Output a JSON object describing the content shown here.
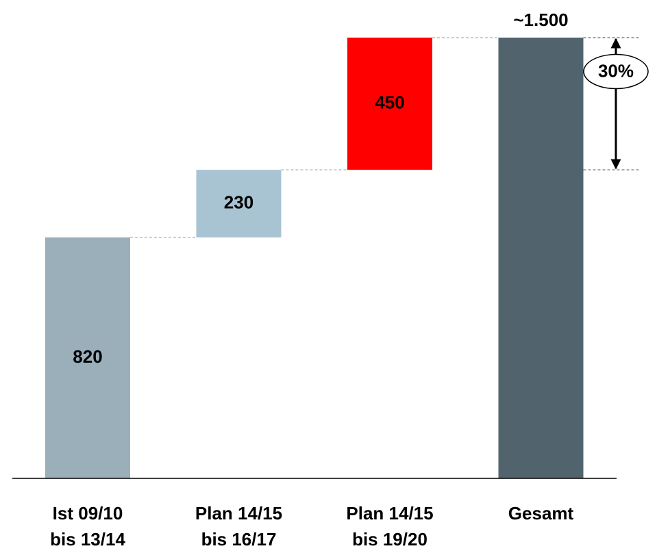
{
  "chart_data": {
    "type": "waterfall",
    "categories": [
      [
        "Ist 09/10",
        "bis 13/14"
      ],
      [
        "Plan 14/15",
        "bis 16/17"
      ],
      [
        "Plan 14/15",
        "bis 19/20"
      ],
      [
        "Gesamt"
      ]
    ],
    "values": [
      820,
      230,
      450,
      1500
    ],
    "value_labels": [
      "820",
      "230",
      "450",
      "~1.500"
    ],
    "measure": [
      "relative",
      "relative",
      "relative",
      "total"
    ],
    "colors": [
      "#9aafba",
      "#a8c4d2",
      "#ff0000",
      "#51646e"
    ],
    "ylim": [
      0,
      1600
    ],
    "annotation": "30%"
  }
}
